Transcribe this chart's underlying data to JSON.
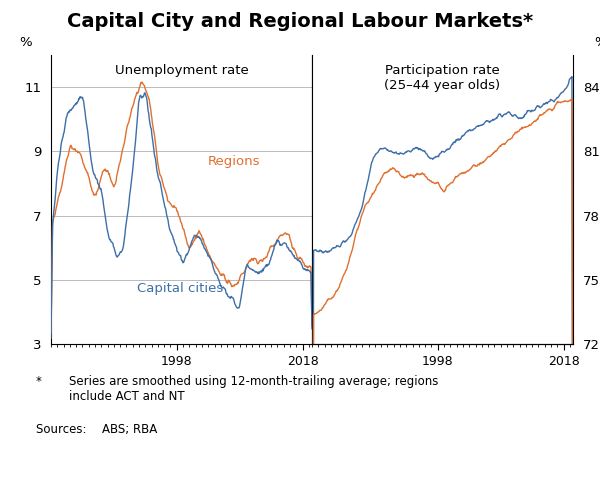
{
  "title": "Capital City and Regional Labour Markets*",
  "title_fontsize": 14,
  "colors": {
    "capital_cities": "#3d6fa8",
    "regions": "#e07030"
  },
  "left_panel": {
    "title": "Unemployment rate",
    "ylabel_left": "%",
    "ylim": [
      3,
      12
    ],
    "yticks": [
      3,
      5,
      7,
      9,
      11
    ],
    "xticks": [
      1998,
      2018
    ]
  },
  "right_panel": {
    "title": "Participation rate\n(25–44 year olds)",
    "ylabel_right": "%",
    "ylim": [
      72,
      85.5
    ],
    "yticks": [
      72,
      75,
      78,
      81,
      84
    ],
    "xticks": [
      1998,
      2018
    ]
  },
  "footnote_star": "*",
  "footnote_text": "Series are smoothed using 12-month-trailing average; regions\ninclude ACT and NT",
  "source": "Sources:  ABS; RBA",
  "background_color": "#ffffff",
  "grid_color": "#b0b0b0",
  "line_width": 1.0
}
